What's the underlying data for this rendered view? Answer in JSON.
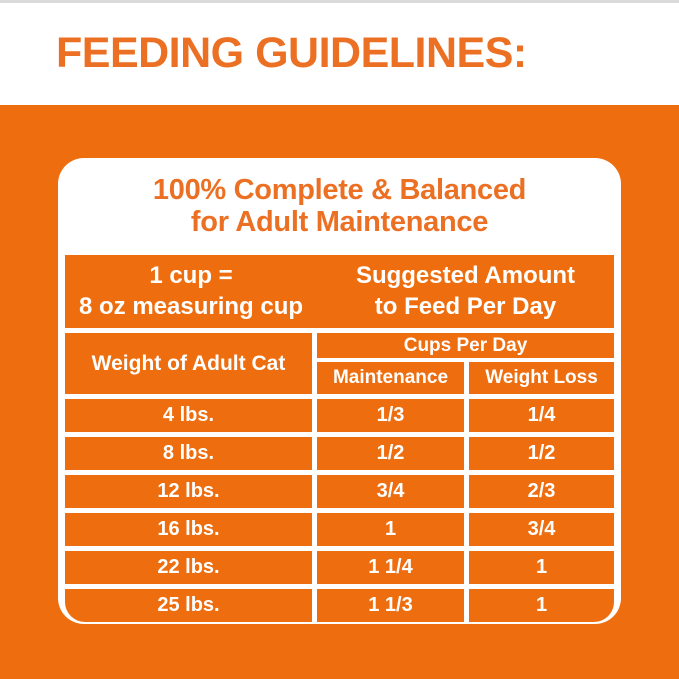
{
  "header": {
    "title": "FEEDING GUIDELINES:"
  },
  "card": {
    "title": {
      "line1": "100% Complete & Balanced",
      "line2": "for Adult Maintenance"
    },
    "cup_info": {
      "line1": "1 cup =",
      "line2": "8 oz measuring cup"
    },
    "suggested": {
      "line1": "Suggested Amount",
      "line2": "to Feed Per Day"
    }
  },
  "table": {
    "weight_header": "Weight of Adult Cat",
    "cups_header": "Cups Per Day",
    "maintenance_header": "Maintenance",
    "weight_loss_header": "Weight Loss",
    "rows": [
      {
        "weight": "4 lbs.",
        "maintenance": "1/3",
        "weight_loss": "1/4"
      },
      {
        "weight": "8 lbs.",
        "maintenance": "1/2",
        "weight_loss": "1/2"
      },
      {
        "weight": "12 lbs.",
        "maintenance": "3/4",
        "weight_loss": "2/3"
      },
      {
        "weight": "16 lbs.",
        "maintenance": "1",
        "weight_loss": "3/4"
      },
      {
        "weight": "22 lbs.",
        "maintenance": "1 1/4",
        "weight_loss": "1"
      },
      {
        "weight": "25 lbs.",
        "maintenance": "1 1/3",
        "weight_loss": "1"
      }
    ]
  },
  "colors": {
    "orange_background": "#EE6D0E",
    "orange_text": "#EC7023",
    "table_text": "#FFFFFF",
    "top_line_gray": "#DADADA"
  }
}
